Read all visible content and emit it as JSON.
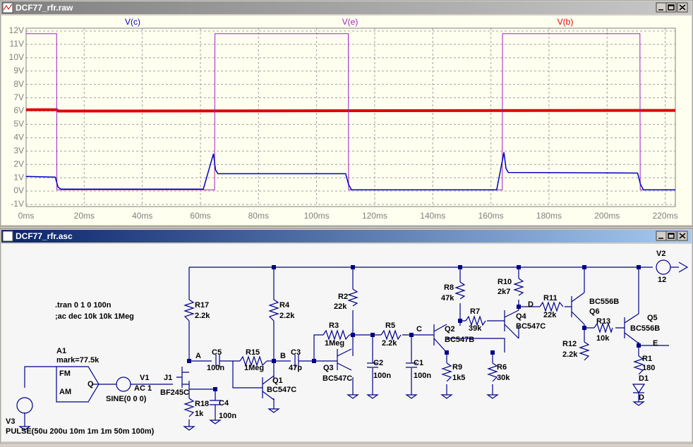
{
  "windows": {
    "plot_title": "DCF77_rfr.raw",
    "schematic_title": "DCF77_rfr.asc"
  },
  "chart_data": {
    "type": "line",
    "grid": true,
    "xlim": [
      0,
      223.5
    ],
    "ylim": [
      -1.16,
      12.21
    ],
    "xticks": [
      {
        "value": 0,
        "label": "0ms"
      },
      {
        "value": 20,
        "label": "20ms"
      },
      {
        "value": 40,
        "label": "40ms"
      },
      {
        "value": 60,
        "label": "60ms"
      },
      {
        "value": 80,
        "label": "80ms"
      },
      {
        "value": 100,
        "label": "100ms"
      },
      {
        "value": 120,
        "label": "120ms"
      },
      {
        "value": 140,
        "label": "140ms"
      },
      {
        "value": 160,
        "label": "160ms"
      },
      {
        "value": 180,
        "label": "180ms"
      },
      {
        "value": 200,
        "label": "200ms"
      },
      {
        "value": 220,
        "label": "220ms"
      }
    ],
    "yticks": [
      {
        "value": -1,
        "label": "-1V"
      },
      {
        "value": 0,
        "label": "0V"
      },
      {
        "value": 1,
        "label": "1V"
      },
      {
        "value": 2,
        "label": "2V"
      },
      {
        "value": 3,
        "label": "3V"
      },
      {
        "value": 4,
        "label": "4V"
      },
      {
        "value": 5,
        "label": "5V"
      },
      {
        "value": 6,
        "label": "6V"
      },
      {
        "value": 7,
        "label": "7V"
      },
      {
        "value": 8,
        "label": "8V"
      },
      {
        "value": 9,
        "label": "9V"
      },
      {
        "value": 10,
        "label": "10V"
      },
      {
        "value": 11,
        "label": "11V"
      },
      {
        "value": 12,
        "label": "12V"
      }
    ],
    "series": [
      {
        "name": "V(c)",
        "color": "#0000c0",
        "width": 1.5,
        "x": [
          0,
          10,
          11,
          12,
          61,
          64.5,
          65.2,
          66,
          110,
          111,
          112,
          162,
          164.5,
          165.2,
          166,
          210.5,
          211.5,
          212.5,
          223.5
        ],
        "values": [
          1.1,
          1.05,
          0.3,
          0.15,
          0.15,
          2.8,
          1.6,
          1.3,
          1.3,
          0.5,
          0.1,
          0.1,
          2.9,
          1.7,
          1.4,
          1.35,
          0.5,
          0.1,
          0.1
        ]
      },
      {
        "name": "V(e)",
        "color": "#a020c0",
        "width": 1,
        "x": [
          0,
          10.5,
          10.6,
          64.9,
          65,
          110.9,
          111,
          163.9,
          164,
          211.3,
          211.4,
          223.5
        ],
        "values": [
          11.8,
          11.8,
          0.1,
          0.1,
          11.8,
          11.8,
          0.1,
          0.1,
          11.8,
          11.8,
          0.1,
          0.1
        ]
      },
      {
        "name": "V(b)",
        "color": "#e00000",
        "width": 4,
        "x": [
          0,
          10.5,
          11,
          223.5
        ],
        "values": [
          6.1,
          6.1,
          6.0,
          6.05
        ]
      }
    ]
  },
  "schematic": {
    "labels": [
      ".tran 0 1 0 100n",
      ";ac dec 10k 10k 1Meg",
      "A1",
      "mark=77.5k",
      "FM",
      "AM",
      "Q",
      "V1",
      "AC 1",
      "SINE(0 0 0)",
      "J1",
      "BF245C",
      "V3",
      "PULSE(50u 200u 10m 1m 1m 50m 100m)",
      "R17",
      "2.2k",
      "A",
      "C5",
      "100n",
      "R15",
      "1Meg",
      "B",
      "C3",
      "47p",
      "R4",
      "2.2k",
      "Q1",
      "BC547C",
      "R18",
      "1k",
      "C4",
      "100n",
      "R2",
      "22k",
      "R3",
      "1Meg",
      "R5",
      "2.2k",
      "C",
      "Q3",
      "BC547C",
      "C2",
      "100n",
      "C1",
      "100n",
      "R8",
      "47k",
      "R7",
      "39k",
      "Q2",
      "BC547B",
      "R9",
      "1k5",
      "R6",
      "30k",
      "R10",
      "2k7",
      "D",
      "Q4",
      "BC547C",
      "R11",
      "22k",
      "BC556B",
      "Q6",
      "R13",
      "10k",
      "R12",
      "2.2k",
      "Q5",
      "BC556B",
      "E",
      "R1",
      "180",
      "D1",
      "D",
      "V2",
      "12"
    ]
  }
}
